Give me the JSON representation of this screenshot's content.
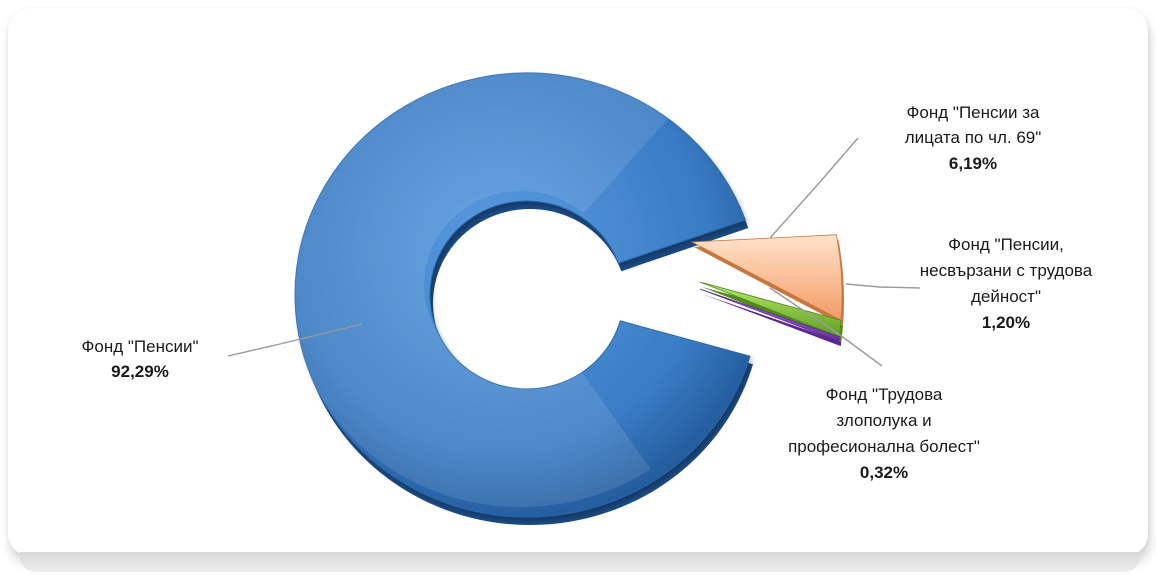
{
  "chart_data": {
    "type": "pie",
    "style": "3d exploded doughnut",
    "slices": [
      {
        "key": "pensions",
        "name_lines": [
          "Фонд \"Пенсии\""
        ],
        "value": 92.29,
        "value_label": "92,29%",
        "color": "#3a7cc4"
      },
      {
        "key": "art69",
        "name_lines": [
          "Фонд \"Пенсии за",
          "лицата по чл. 69\""
        ],
        "value": 6.19,
        "value_label": "6,19%",
        "color": "#f7b98d"
      },
      {
        "key": "nonlabour",
        "name_lines": [
          "Фонд \"Пенсии,",
          "несвързани с трудова",
          "дейност\""
        ],
        "value": 1.2,
        "value_label": "1,20%",
        "color": "#8fcf3c"
      },
      {
        "key": "accident",
        "name_lines": [
          "Фонд \"Трудова",
          "злополука и",
          "професионална болест\""
        ],
        "value": 0.32,
        "value_label": "0,32%",
        "color": "#8e4fc8"
      }
    ],
    "legend": "none",
    "data_labels": "outside with leader lines"
  }
}
